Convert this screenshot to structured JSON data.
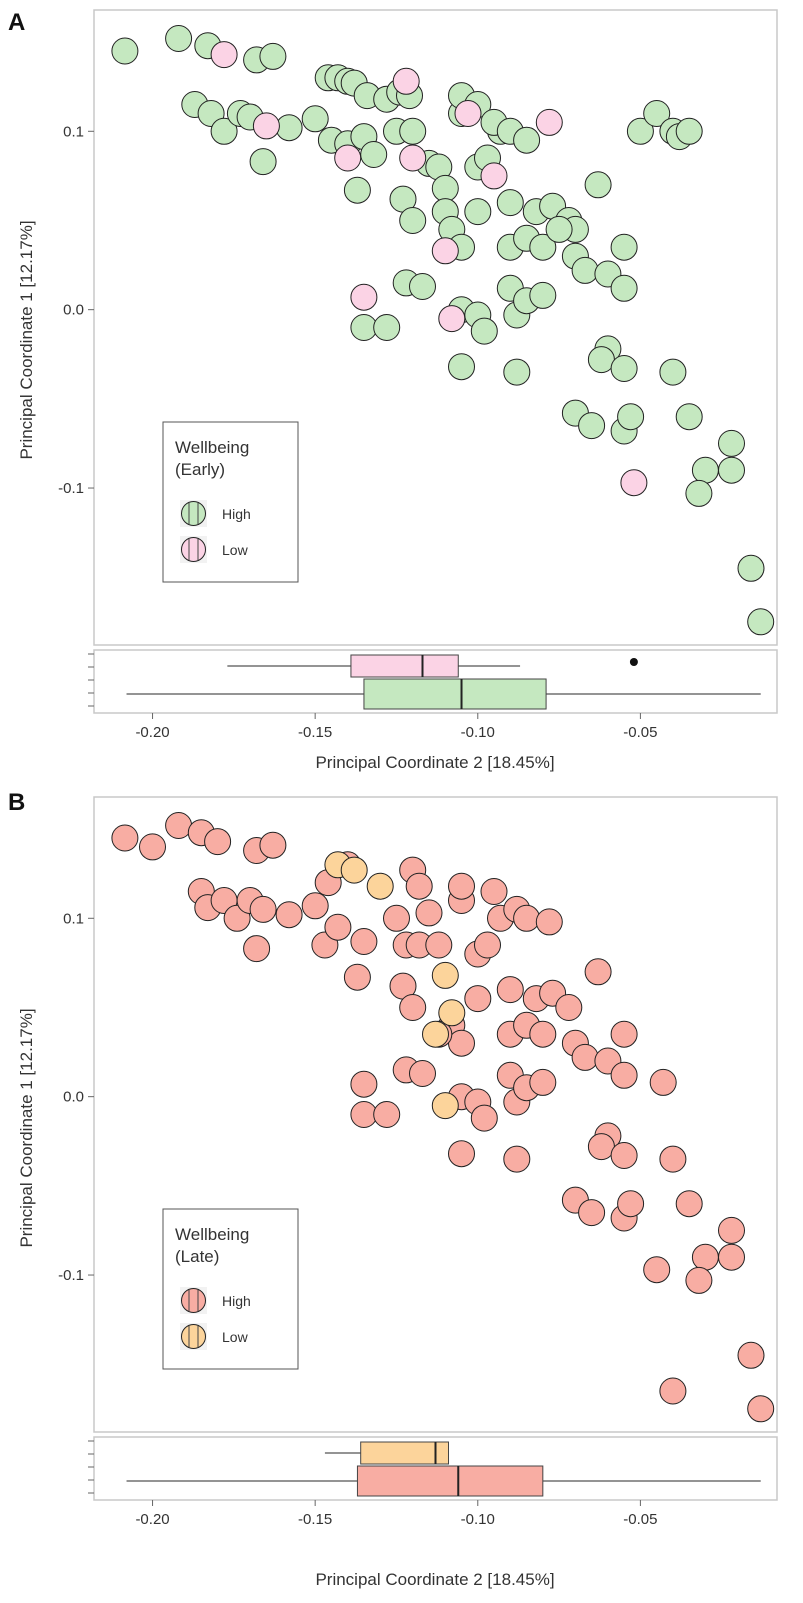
{
  "chart_data": [
    {
      "panel": "A",
      "type": "scatter",
      "xlabel": "Principal Coordinate 2 [18.45%]",
      "ylabel": "Principal Coordinate 1 [12.17%]",
      "xlim": [
        -0.218,
        -0.008
      ],
      "ylim": [
        -0.188,
        0.168
      ],
      "x_ticks": [
        -0.2,
        -0.15,
        -0.1,
        -0.05
      ],
      "x_tick_labels": [
        "-0.20",
        "-0.15",
        "-0.10",
        "-0.05"
      ],
      "y_ticks": [
        0.1,
        0.0,
        -0.1
      ],
      "y_tick_labels": [
        "0.1",
        "0.0",
        "-0.1"
      ],
      "legend": {
        "title_lines": [
          "Wellbeing",
          "(Early)"
        ],
        "position": "bottom-left",
        "entries": [
          "High",
          "Low"
        ]
      },
      "colors": {
        "High": "#c5e8c0",
        "Low": "#fbd3e5",
        "outline": "#222222"
      },
      "series": [
        {
          "name": "High",
          "points": [
            [
              -0.2085,
              0.145
            ],
            [
              -0.192,
              0.152
            ],
            [
              -0.183,
              0.148
            ],
            [
              -0.168,
              0.14
            ],
            [
              -0.163,
              0.142
            ],
            [
              -0.187,
              0.115
            ],
            [
              -0.182,
              0.11
            ],
            [
              -0.178,
              0.1
            ],
            [
              -0.173,
              0.11
            ],
            [
              -0.17,
              0.108
            ],
            [
              -0.166,
              0.083
            ],
            [
              -0.158,
              0.102
            ],
            [
              -0.15,
              0.107
            ],
            [
              -0.146,
              0.13
            ],
            [
              -0.143,
              0.13
            ],
            [
              -0.14,
              0.128
            ],
            [
              -0.138,
              0.127
            ],
            [
              -0.134,
              0.12
            ],
            [
              -0.128,
              0.118
            ],
            [
              -0.124,
              0.122
            ],
            [
              -0.121,
              0.12
            ],
            [
              -0.145,
              0.095
            ],
            [
              -0.14,
              0.093
            ],
            [
              -0.135,
              0.097
            ],
            [
              -0.132,
              0.087
            ],
            [
              -0.125,
              0.1
            ],
            [
              -0.12,
              0.1
            ],
            [
              -0.115,
              0.082
            ],
            [
              -0.137,
              0.067
            ],
            [
              -0.123,
              0.062
            ],
            [
              -0.12,
              0.05
            ],
            [
              -0.112,
              0.08
            ],
            [
              -0.11,
              0.068
            ],
            [
              -0.11,
              0.055
            ],
            [
              -0.108,
              0.045
            ],
            [
              -0.105,
              0.035
            ],
            [
              -0.105,
              0.11
            ],
            [
              -0.1,
              0.08
            ],
            [
              -0.1,
              0.055
            ],
            [
              -0.097,
              0.085
            ],
            [
              -0.093,
              0.1
            ],
            [
              -0.09,
              0.06
            ],
            [
              -0.09,
              0.035
            ],
            [
              -0.085,
              0.04
            ],
            [
              -0.082,
              0.055
            ],
            [
              -0.08,
              0.035
            ],
            [
              -0.077,
              0.058
            ],
            [
              -0.072,
              0.05
            ],
            [
              -0.07,
              0.045
            ],
            [
              -0.07,
              0.03
            ],
            [
              -0.067,
              0.022
            ],
            [
              -0.063,
              0.07
            ],
            [
              -0.06,
              0.02
            ],
            [
              -0.055,
              0.035
            ],
            [
              -0.055,
              0.012
            ],
            [
              -0.05,
              0.1
            ],
            [
              -0.045,
              0.11
            ],
            [
              -0.04,
              0.1
            ],
            [
              -0.038,
              0.097
            ],
            [
              -0.035,
              0.1
            ],
            [
              -0.122,
              0.015
            ],
            [
              -0.117,
              0.013
            ],
            [
              -0.105,
              0.0
            ],
            [
              -0.1,
              -0.003
            ],
            [
              -0.098,
              -0.012
            ],
            [
              -0.09,
              0.012
            ],
            [
              -0.088,
              -0.003
            ],
            [
              -0.085,
              0.005
            ],
            [
              -0.08,
              0.008
            ],
            [
              -0.135,
              -0.01
            ],
            [
              -0.128,
              -0.01
            ],
            [
              -0.105,
              -0.032
            ],
            [
              -0.088,
              -0.035
            ],
            [
              -0.06,
              -0.022
            ],
            [
              -0.062,
              -0.028
            ],
            [
              -0.055,
              -0.033
            ],
            [
              -0.07,
              -0.058
            ],
            [
              -0.065,
              -0.065
            ],
            [
              -0.055,
              -0.068
            ],
            [
              -0.053,
              -0.06
            ],
            [
              -0.04,
              -0.035
            ],
            [
              -0.035,
              -0.06
            ],
            [
              -0.03,
              -0.09
            ],
            [
              -0.032,
              -0.103
            ],
            [
              -0.022,
              -0.075
            ],
            [
              -0.022,
              -0.09
            ],
            [
              -0.016,
              -0.145
            ],
            [
              -0.013,
              -0.175
            ],
            [
              -0.105,
              0.12
            ],
            [
              -0.1,
              0.115
            ],
            [
              -0.095,
              0.105
            ],
            [
              -0.09,
              0.1
            ],
            [
              -0.085,
              0.095
            ],
            [
              -0.075,
              0.045
            ]
          ]
        },
        {
          "name": "Low",
          "points": [
            [
              -0.178,
              0.143
            ],
            [
              -0.165,
              0.103
            ],
            [
              -0.14,
              0.085
            ],
            [
              -0.122,
              0.128
            ],
            [
              -0.12,
              0.085
            ],
            [
              -0.103,
              0.11
            ],
            [
              -0.095,
              0.075
            ],
            [
              -0.11,
              0.033
            ],
            [
              -0.135,
              0.007
            ],
            [
              -0.108,
              -0.005
            ],
            [
              -0.078,
              0.105
            ],
            [
              -0.052,
              -0.097
            ]
          ]
        }
      ],
      "boxplot": {
        "High": {
          "min": -0.208,
          "q1": -0.135,
          "median": -0.105,
          "q3": -0.079,
          "max": -0.013,
          "outliers": []
        },
        "Low": {
          "min": -0.177,
          "q1": -0.139,
          "median": -0.117,
          "q3": -0.106,
          "max": -0.087,
          "outliers": [
            -0.052
          ]
        }
      }
    },
    {
      "panel": "B",
      "type": "scatter",
      "xlabel": "Principal Coordinate 2 [18.45%]",
      "ylabel": "Principal Coordinate 1 [12.17%]",
      "xlim": [
        -0.218,
        -0.008
      ],
      "ylim": [
        -0.188,
        0.168
      ],
      "x_ticks": [
        -0.2,
        -0.15,
        -0.1,
        -0.05
      ],
      "x_tick_labels": [
        "-0.20",
        "-0.15",
        "-0.10",
        "-0.05"
      ],
      "y_ticks": [
        0.1,
        0.0,
        -0.1
      ],
      "y_tick_labels": [
        "0.1",
        "0.0",
        "-0.1"
      ],
      "legend": {
        "title_lines": [
          "Wellbeing",
          "(Late)"
        ],
        "position": "bottom-left",
        "entries": [
          "High",
          "Low"
        ]
      },
      "colors": {
        "High": "#f8ada3",
        "Low": "#fcd49b",
        "outline": "#222222"
      },
      "series": [
        {
          "name": "High",
          "points": [
            [
              -0.2085,
              0.145
            ],
            [
              -0.2,
              0.14
            ],
            [
              -0.192,
              0.152
            ],
            [
              -0.185,
              0.148
            ],
            [
              -0.18,
              0.143
            ],
            [
              -0.168,
              0.138
            ],
            [
              -0.163,
              0.141
            ],
            [
              -0.185,
              0.115
            ],
            [
              -0.183,
              0.106
            ],
            [
              -0.178,
              0.11
            ],
            [
              -0.174,
              0.1
            ],
            [
              -0.17,
              0.11
            ],
            [
              -0.166,
              0.105
            ],
            [
              -0.168,
              0.083
            ],
            [
              -0.158,
              0.102
            ],
            [
              -0.15,
              0.107
            ],
            [
              -0.147,
              0.085
            ],
            [
              -0.143,
              0.095
            ],
            [
              -0.137,
              0.067
            ],
            [
              -0.135,
              0.087
            ],
            [
              -0.125,
              0.1
            ],
            [
              -0.122,
              0.085
            ],
            [
              -0.12,
              0.127
            ],
            [
              -0.118,
              0.118
            ],
            [
              -0.115,
              0.103
            ],
            [
              -0.123,
              0.062
            ],
            [
              -0.12,
              0.05
            ],
            [
              -0.118,
              0.085
            ],
            [
              -0.112,
              0.085
            ],
            [
              -0.108,
              0.04
            ],
            [
              -0.105,
              0.11
            ],
            [
              -0.105,
              0.118
            ],
            [
              -0.105,
              0.03
            ],
            [
              -0.1,
              0.08
            ],
            [
              -0.1,
              0.055
            ],
            [
              -0.097,
              0.085
            ],
            [
              -0.095,
              0.115
            ],
            [
              -0.093,
              0.1
            ],
            [
              -0.09,
              0.06
            ],
            [
              -0.09,
              0.035
            ],
            [
              -0.088,
              0.105
            ],
            [
              -0.085,
              0.04
            ],
            [
              -0.085,
              0.1
            ],
            [
              -0.082,
              0.055
            ],
            [
              -0.08,
              0.035
            ],
            [
              -0.078,
              0.098
            ],
            [
              -0.077,
              0.058
            ],
            [
              -0.072,
              0.05
            ],
            [
              -0.07,
              0.03
            ],
            [
              -0.067,
              0.022
            ],
            [
              -0.063,
              0.07
            ],
            [
              -0.06,
              0.02
            ],
            [
              -0.055,
              0.035
            ],
            [
              -0.055,
              0.012
            ],
            [
              -0.122,
              0.015
            ],
            [
              -0.117,
              0.013
            ],
            [
              -0.105,
              0.0
            ],
            [
              -0.1,
              -0.003
            ],
            [
              -0.098,
              -0.012
            ],
            [
              -0.09,
              0.012
            ],
            [
              -0.088,
              -0.003
            ],
            [
              -0.085,
              0.005
            ],
            [
              -0.08,
              0.008
            ],
            [
              -0.135,
              0.007
            ],
            [
              -0.135,
              -0.01
            ],
            [
              -0.128,
              -0.01
            ],
            [
              -0.105,
              -0.032
            ],
            [
              -0.088,
              -0.035
            ],
            [
              -0.06,
              -0.022
            ],
            [
              -0.062,
              -0.028
            ],
            [
              -0.055,
              -0.033
            ],
            [
              -0.07,
              -0.058
            ],
            [
              -0.065,
              -0.065
            ],
            [
              -0.055,
              -0.068
            ],
            [
              -0.053,
              -0.06
            ],
            [
              -0.043,
              0.008
            ],
            [
              -0.04,
              -0.035
            ],
            [
              -0.035,
              -0.06
            ],
            [
              -0.03,
              -0.09
            ],
            [
              -0.032,
              -0.103
            ],
            [
              -0.045,
              -0.097
            ],
            [
              -0.022,
              -0.075
            ],
            [
              -0.022,
              -0.09
            ],
            [
              -0.016,
              -0.145
            ],
            [
              -0.04,
              -0.165
            ],
            [
              -0.013,
              -0.175
            ],
            [
              -0.14,
              0.13
            ],
            [
              -0.146,
              0.12
            ],
            [
              -0.112,
              0.035
            ]
          ]
        },
        {
          "name": "Low",
          "points": [
            [
              -0.143,
              0.13
            ],
            [
              -0.138,
              0.127
            ],
            [
              -0.13,
              0.118
            ],
            [
              -0.11,
              0.068
            ],
            [
              -0.108,
              0.047
            ],
            [
              -0.113,
              0.035
            ],
            [
              -0.11,
              -0.005
            ]
          ]
        }
      ],
      "boxplot": {
        "High": {
          "min": -0.208,
          "q1": -0.137,
          "median": -0.106,
          "q3": -0.08,
          "max": -0.013,
          "outliers": []
        },
        "Low": {
          "min": -0.147,
          "q1": -0.136,
          "median": -0.113,
          "q3": -0.109,
          "max": -0.109,
          "outliers": []
        }
      }
    }
  ]
}
